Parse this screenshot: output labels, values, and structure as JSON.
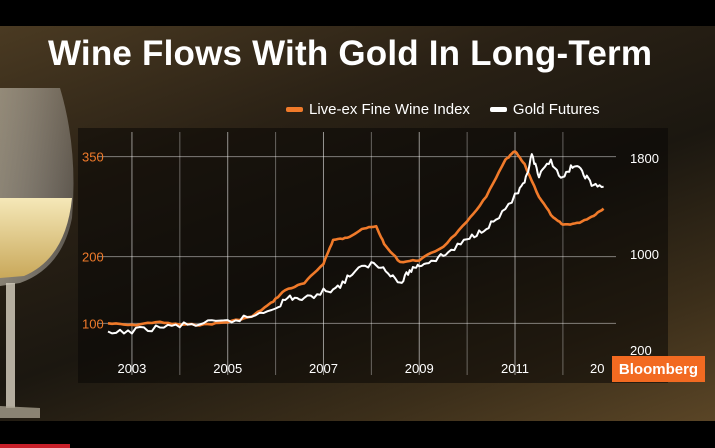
{
  "chart_data": {
    "type": "line",
    "title": "Wine Flows With Gold In Long-Term",
    "x_ticks": [
      "2003",
      "2005",
      "2007",
      "2009",
      "2011",
      "20"
    ],
    "xlim": [
      2002.5,
      2012.9
    ],
    "y_left": {
      "ticks": [
        "350",
        "200",
        "100"
      ],
      "tick_values": [
        350,
        200,
        100
      ],
      "range": [
        60,
        375
      ],
      "color": "#f07a2a"
    },
    "y_right": {
      "ticks": [
        "1800",
        "1000",
        "200"
      ],
      "tick_values": [
        1800,
        1000,
        200
      ],
      "range": [
        200,
        1950
      ],
      "color": "#ffffff"
    },
    "legend_position": "top-right",
    "grid": true,
    "series": [
      {
        "name": "Live-ex Fine Wine Index",
        "axis": "left",
        "color": "#f07a2a",
        "x": [
          2002.5,
          2003.0,
          2003.5,
          2004.0,
          2004.5,
          2005.0,
          2005.5,
          2005.9,
          2006.2,
          2006.6,
          2007.0,
          2007.2,
          2007.5,
          2007.8,
          2008.1,
          2008.3,
          2008.6,
          2009.0,
          2009.5,
          2010.0,
          2010.4,
          2010.8,
          2011.0,
          2011.2,
          2011.5,
          2011.8,
          2012.0,
          2012.3,
          2012.6,
          2012.85
        ],
        "y": [
          100,
          97,
          102,
          98,
          98,
          102,
          110,
          130,
          150,
          160,
          190,
          225,
          228,
          242,
          245,
          215,
          192,
          195,
          215,
          252,
          290,
          345,
          358,
          338,
          290,
          258,
          248,
          250,
          260,
          272
        ]
      },
      {
        "name": "Gold Futures",
        "axis": "right",
        "color": "#ffffff",
        "x": [
          2002.5,
          2003.0,
          2003.5,
          2004.0,
          2004.5,
          2005.0,
          2005.5,
          2006.0,
          2006.3,
          2006.6,
          2007.0,
          2007.3,
          2007.6,
          2008.0,
          2008.3,
          2008.6,
          2008.8,
          2009.0,
          2009.3,
          2009.6,
          2010.0,
          2010.3,
          2010.6,
          2011.0,
          2011.2,
          2011.35,
          2011.5,
          2011.75,
          2012.0,
          2012.2,
          2012.4,
          2012.6,
          2012.85
        ],
        "y": [
          330,
          360,
          385,
          405,
          420,
          435,
          480,
          560,
          640,
          620,
          690,
          720,
          840,
          920,
          880,
          750,
          860,
          910,
          950,
          1010,
          1120,
          1200,
          1280,
          1480,
          1580,
          1820,
          1640,
          1780,
          1620,
          1740,
          1690,
          1580,
          1560
        ]
      }
    ]
  },
  "brand": {
    "label": "Bloomberg",
    "color": "#f26a21"
  }
}
